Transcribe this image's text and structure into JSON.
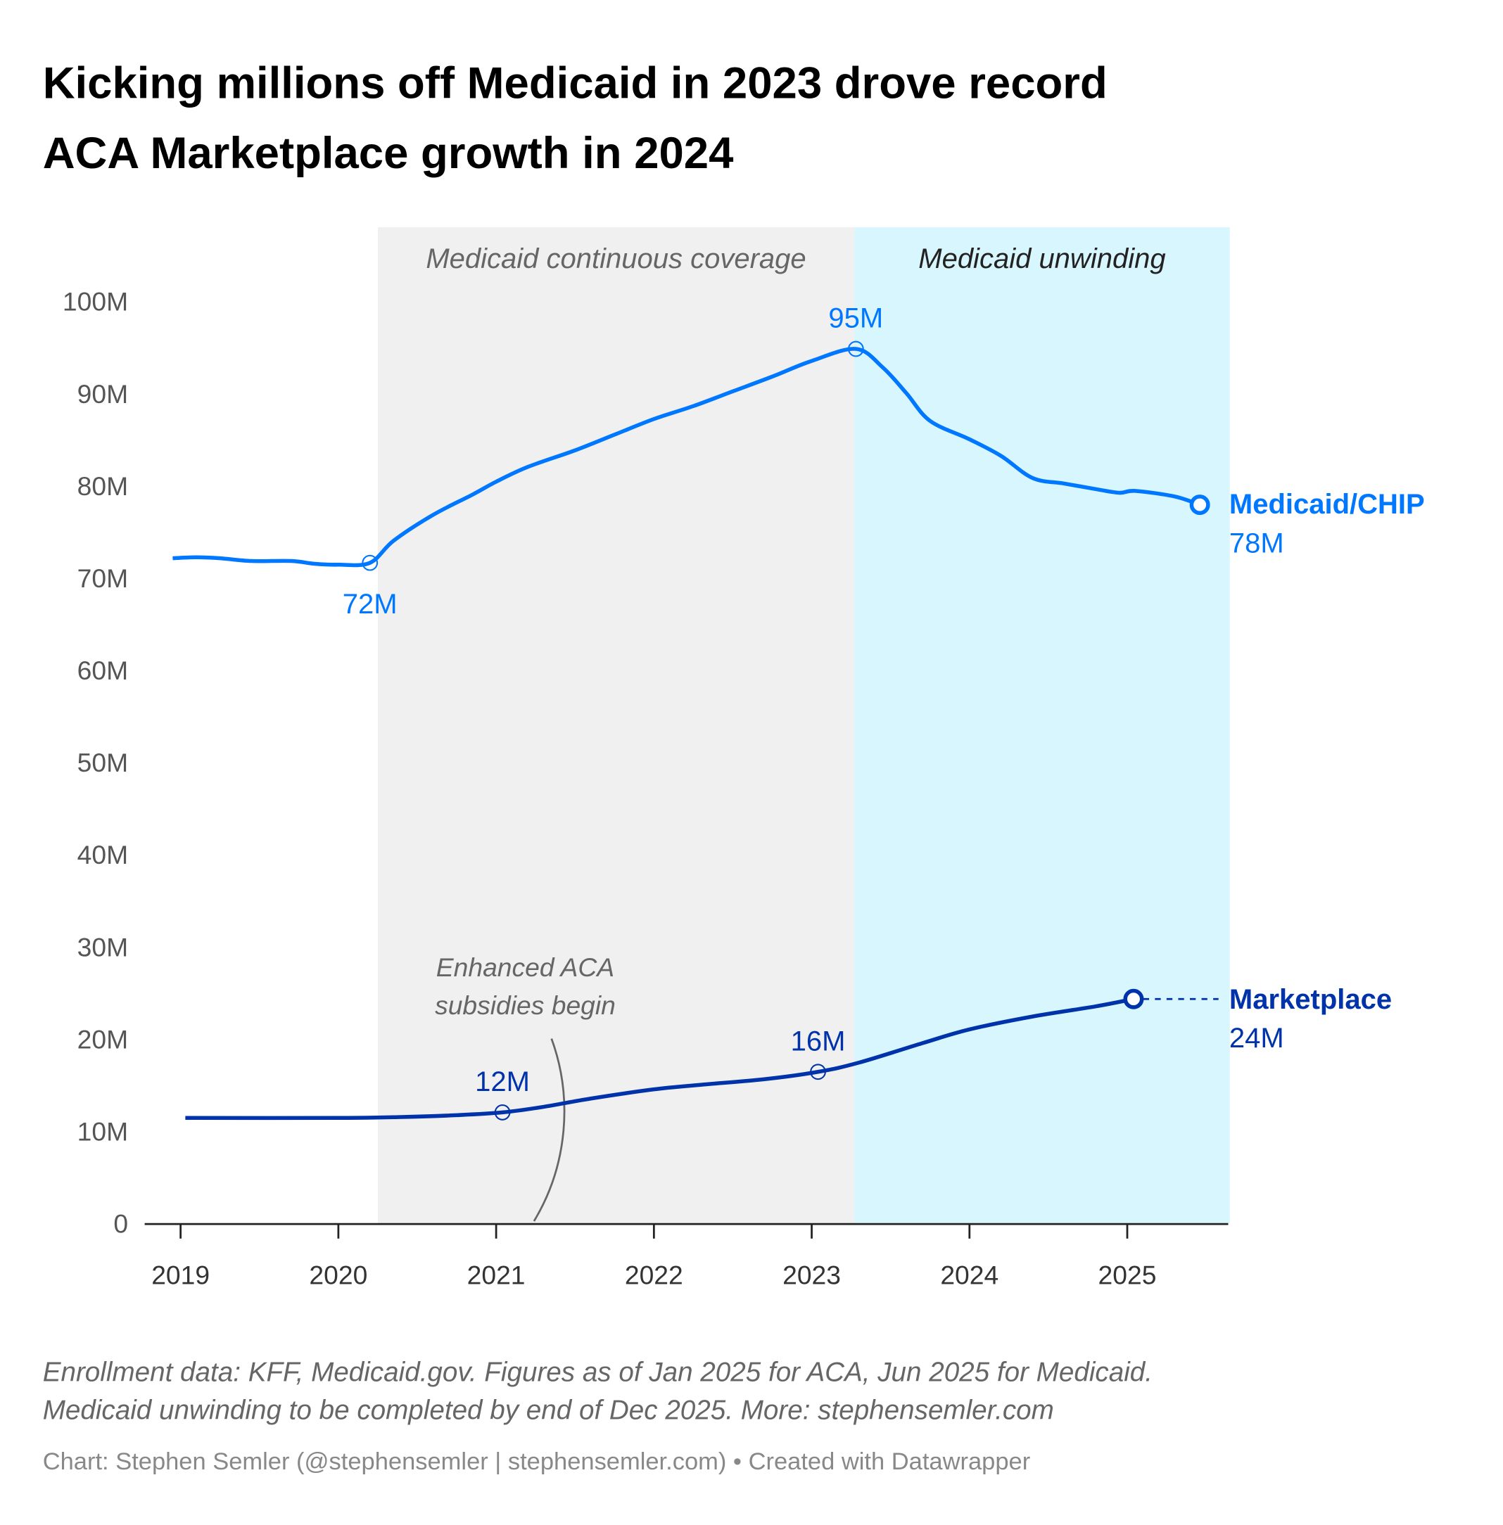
{
  "title_lines": [
    "Kicking millions off Medicaid in 2023 drove record",
    "ACA Marketplace growth in 2024"
  ],
  "chart_data": {
    "type": "line",
    "title": "Kicking millions off Medicaid in 2023 drove record ACA Marketplace growth in 2024",
    "xlim": [
      2018.95,
      2025.7
    ],
    "ylim": [
      0,
      100
    ],
    "x_ticks": [
      2019,
      2020,
      2021,
      2022,
      2023,
      2024,
      2025
    ],
    "x_tick_labels": [
      "2019",
      "2020",
      "2021",
      "2022",
      "2023",
      "2024",
      "2025"
    ],
    "y_ticks": [
      0,
      10,
      20,
      30,
      40,
      50,
      60,
      70,
      80,
      90,
      100
    ],
    "y_tick_labels": [
      "0",
      "10M",
      "20M",
      "30M",
      "40M",
      "50M",
      "60M",
      "70M",
      "80M",
      "90M",
      "100M"
    ],
    "bands": [
      {
        "label": "Medicaid continuous coverage",
        "from": 2020.25,
        "to": 2023.27,
        "color": "#f0f0f0",
        "text_color": "#666666"
      },
      {
        "label": "Medicaid unwinding",
        "from": 2023.27,
        "to": 2025.65,
        "color": "#d8f6fe",
        "text_color": "#222222"
      }
    ],
    "series": [
      {
        "name": "Medicaid/CHIP",
        "end_label": "78M",
        "color": "#0077ff",
        "x": [
          2018.95,
          2019.1,
          2019.25,
          2019.45,
          2019.7,
          2019.85,
          2020.0,
          2020.2,
          2020.35,
          2020.6,
          2020.85,
          2021.0,
          2021.2,
          2021.5,
          2021.75,
          2022.0,
          2022.25,
          2022.5,
          2022.75,
          2023.0,
          2023.28,
          2023.45,
          2023.6,
          2023.75,
          2024.0,
          2024.2,
          2024.4,
          2024.6,
          2024.8,
          2024.95,
          2025.05,
          2025.3,
          2025.46
        ],
        "y": [
          72.1,
          72.2,
          72.1,
          71.8,
          71.8,
          71.5,
          71.4,
          71.6,
          74.0,
          76.8,
          79.0,
          80.4,
          82.0,
          83.8,
          85.5,
          87.2,
          88.6,
          90.2,
          91.8,
          93.5,
          94.8,
          92.8,
          90.0,
          87.0,
          85.0,
          83.2,
          80.8,
          80.2,
          79.6,
          79.2,
          79.4,
          78.8,
          77.9
        ],
        "annotations": [
          {
            "x": 2020.2,
            "y": 71.6,
            "label": "72M",
            "pos": "below"
          },
          {
            "x": 2023.28,
            "y": 94.8,
            "label": "95M",
            "pos": "above"
          }
        ]
      },
      {
        "name": "Marketplace",
        "end_label": "24M",
        "color": "#0033aa",
        "x": [
          2019.03,
          2020.0,
          2020.4,
          2020.75,
          2021.04,
          2021.3,
          2021.6,
          2022.0,
          2022.3,
          2022.7,
          2023.04,
          2023.3,
          2023.7,
          2024.0,
          2024.4,
          2024.8,
          2025.04
        ],
        "y": [
          11.4,
          11.4,
          11.5,
          11.7,
          12.0,
          12.6,
          13.5,
          14.5,
          15.0,
          15.6,
          16.4,
          17.4,
          19.5,
          21.0,
          22.4,
          23.5,
          24.3
        ],
        "annotations": [
          {
            "x": 2021.04,
            "y": 12.0,
            "label": "12M",
            "pos": "above"
          },
          {
            "x": 2023.04,
            "y": 16.4,
            "label": "16M",
            "pos": "above"
          }
        ]
      }
    ],
    "text_annotation": [
      "Enhanced ACA",
      "subsidies begin"
    ]
  },
  "footnote_lines": [
    "Enrollment data: KFF, Medicaid.gov. Figures as of Jan 2025 for ACA, Jun 2025 for Medicaid.",
    "Medicaid unwinding to be completed by end of Dec 2025. More: stephensemler.com"
  ],
  "credit": "Chart: Stephen Semler (@stephensemler | stephensemler.com) • Created with Datawrapper"
}
